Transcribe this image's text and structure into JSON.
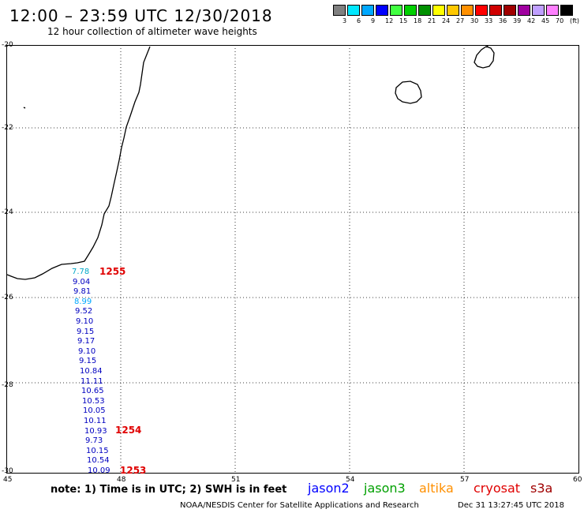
{
  "header": {
    "title": "12:00 – 23:59 UTC 12/30/2018",
    "subtitle": "12 hour collection of altimeter wave heights"
  },
  "legend": {
    "colors": [
      "#808080",
      "#00e8ff",
      "#00a8ff",
      "#0000ff",
      "#40ff40",
      "#00d000",
      "#009000",
      "#ffff00",
      "#ffc800",
      "#ff9000",
      "#ff0000",
      "#d00000",
      "#a00000",
      "#a000a0",
      "#c0a0ff",
      "#ff80ff",
      "#000000"
    ],
    "labels": [
      "3",
      "6",
      "9",
      "12",
      "15",
      "18",
      "21",
      "24",
      "27",
      "30",
      "33",
      "36",
      "39",
      "42",
      "45",
      "70",
      "(ft)"
    ]
  },
  "axes": {
    "y_labels": [
      "-20",
      "-22",
      "-24",
      "-26",
      "-28",
      "-30"
    ],
    "x_labels": [
      "45",
      "48",
      "51",
      "54",
      "57",
      "60"
    ]
  },
  "observations": [
    {
      "v": "7.78",
      "c": "#00a8c8"
    },
    {
      "v": "9.04",
      "c": "#0000c0"
    },
    {
      "v": "9.81",
      "c": "#0000c0"
    },
    {
      "v": "8.99",
      "c": "#00a8ff"
    },
    {
      "v": "9.52",
      "c": "#0000c0"
    },
    {
      "v": "9.10",
      "c": "#0000c0"
    },
    {
      "v": "9.15",
      "c": "#0000c0"
    },
    {
      "v": "9.17",
      "c": "#0000c0"
    },
    {
      "v": "9.10",
      "c": "#0000c0"
    },
    {
      "v": "9.15",
      "c": "#0000c0"
    },
    {
      "v": "10.84",
      "c": "#0000c0"
    },
    {
      "v": "11.11",
      "c": "#0000c0"
    },
    {
      "v": "10.65",
      "c": "#0000c0"
    },
    {
      "v": "10.53",
      "c": "#0000c0"
    },
    {
      "v": "10.05",
      "c": "#0000c0"
    },
    {
      "v": "10.11",
      "c": "#0000c0"
    },
    {
      "v": "10.93",
      "c": "#0000c0"
    },
    {
      "v": "9.73",
      "c": "#0000c0"
    },
    {
      "v": "10.15",
      "c": "#0000c0"
    },
    {
      "v": "10.54",
      "c": "#0000c0"
    },
    {
      "v": "10.09",
      "c": "#0000c0"
    }
  ],
  "pass_times": [
    "1255",
    "1254",
    "1253"
  ],
  "note": "note: 1) Time is in UTC; 2) SWH is in feet",
  "satellites": [
    {
      "name": "jason2",
      "color": "#0000ff"
    },
    {
      "name": "jason3",
      "color": "#00a000"
    },
    {
      "name": "altika",
      "color": "#ff9000"
    },
    {
      "name": "cryosat",
      "color": "#e00000"
    },
    {
      "name": "s3a",
      "color": "#a00000"
    }
  ],
  "footer": {
    "source": "NOAA/NESDIS Center for Satellite Applications and Research",
    "timestamp": "Dec 31 13:27:45 UTC 2018"
  }
}
